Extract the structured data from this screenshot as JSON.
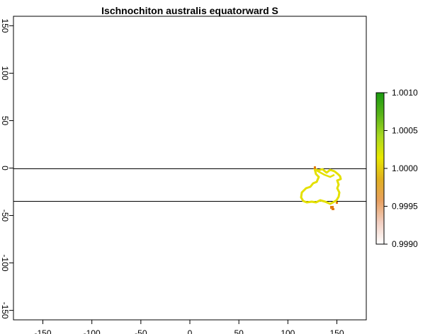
{
  "map": {
    "title": "Ischnochiton australis equatorward S",
    "x_ticks": [
      "-150",
      "-100",
      "-50",
      "0",
      "50",
      "100",
      "150"
    ],
    "y_ticks": [
      "150",
      "100",
      "50",
      "0",
      "-50",
      "-100",
      "-150"
    ],
    "xlim": [
      -180,
      180
    ],
    "ylim": [
      -160,
      160
    ],
    "reference_lines_lat": [
      0,
      -35
    ],
    "legend": {
      "ticks": [
        "1.0010",
        "1.0005",
        "1.0000",
        "0.9995",
        "0.9990"
      ],
      "range": [
        0.999,
        1.001
      ],
      "colors": [
        "#ffffff",
        "#f2cfc2",
        "#e8a060",
        "#e0b020",
        "#e8e800",
        "#a8d820",
        "#58b418",
        "#1a9a10"
      ]
    },
    "colors": {
      "map_yellow": "#e4e000",
      "map_orange": "#e07a10",
      "frame": "#000000"
    }
  }
}
